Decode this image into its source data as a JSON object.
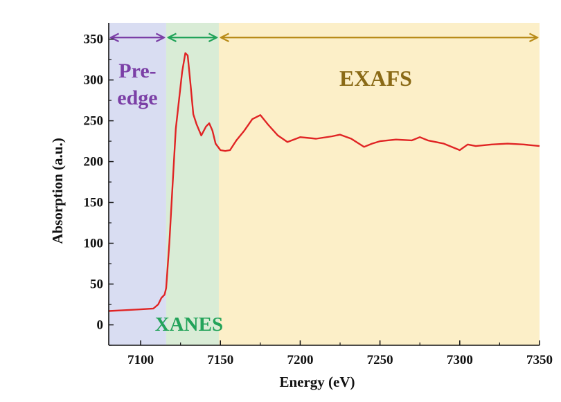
{
  "chart_data": {
    "type": "line",
    "title": "",
    "xlabel": "Energy (eV)",
    "ylabel": "Absorption (a.u.)",
    "xlim": [
      7080,
      7350
    ],
    "ylim": [
      -25,
      370
    ],
    "xticks": [
      7100,
      7150,
      7200,
      7250,
      7300,
      7350
    ],
    "yticks": [
      0,
      50,
      100,
      150,
      200,
      250,
      300,
      350
    ],
    "regions": [
      {
        "name": "pre-edge",
        "label_lines": [
          "Pre-",
          "edge"
        ],
        "x_start": 7080,
        "x_end": 7116,
        "fill": "#d9ddf2",
        "color": "#7b3fa6"
      },
      {
        "name": "xanes",
        "label_lines": [
          "XANES"
        ],
        "x_start": 7116,
        "x_end": 7149,
        "fill": "#d9ecd6",
        "color": "#23a35a"
      },
      {
        "name": "exafs",
        "label_lines": [
          "EXAFS"
        ],
        "x_start": 7149,
        "x_end": 7350,
        "fill": "#fcefc8",
        "color": "#8a6a16"
      }
    ],
    "arrows_y": 352,
    "series": [
      {
        "name": "absorption",
        "color": "#e02424",
        "x": [
          7080,
          7090,
          7100,
          7108,
          7111,
          7113,
          7115,
          7116,
          7118,
          7120,
          7122,
          7124,
          7126,
          7128,
          7129.5,
          7131,
          7133,
          7135,
          7138,
          7141,
          7143,
          7145,
          7147,
          7150,
          7153,
          7156,
          7160,
          7165,
          7170,
          7175,
          7180,
          7186,
          7192,
          7200,
          7210,
          7220,
          7225,
          7232,
          7240,
          7245,
          7250,
          7260,
          7270,
          7275,
          7280,
          7290,
          7300,
          7305,
          7310,
          7320,
          7330,
          7340,
          7350
        ],
        "y": [
          17,
          18,
          19,
          20,
          25,
          33,
          37,
          45,
          100,
          170,
          240,
          275,
          310,
          333,
          330,
          300,
          258,
          246,
          232,
          243,
          247,
          238,
          222,
          214,
          213,
          214,
          226,
          238,
          252,
          257,
          245,
          232,
          224,
          230,
          228,
          231,
          233,
          228,
          218,
          222,
          225,
          227,
          226,
          230,
          226,
          222,
          214,
          221,
          219,
          221,
          222,
          221,
          219
        ]
      }
    ]
  }
}
